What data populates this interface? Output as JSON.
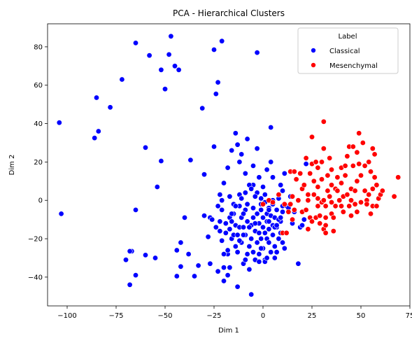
{
  "chart_data": {
    "type": "scatter",
    "title": "PCA - Hierarchical Clusters",
    "xlabel": "Dim 1",
    "ylabel": "Dim 2",
    "xlim": [
      -110,
      75
    ],
    "ylim": [
      -55,
      92
    ],
    "xticks": [
      -100,
      -75,
      -50,
      -25,
      0,
      25,
      50,
      75
    ],
    "yticks": [
      -40,
      -20,
      0,
      20,
      40,
      60,
      80
    ],
    "grid": false,
    "legend": {
      "title": "Label",
      "placement": "top-right"
    },
    "series": [
      {
        "name": "Classical",
        "color": "#0000ff",
        "points": [
          [
            -104,
            40.5
          ],
          [
            -103,
            -7
          ],
          [
            -85,
            53.5
          ],
          [
            -84,
            36
          ],
          [
            -86,
            32.5
          ],
          [
            -78,
            48.5
          ],
          [
            -72,
            63
          ],
          [
            -70,
            -31
          ],
          [
            -67,
            -26.5
          ],
          [
            -68,
            -26.5
          ],
          [
            -68,
            -44
          ],
          [
            -65,
            82
          ],
          [
            -65,
            -5
          ],
          [
            -65,
            -39
          ],
          [
            -60,
            -28.5
          ],
          [
            -60,
            27.5
          ],
          [
            -58,
            75.5
          ],
          [
            -55,
            -30
          ],
          [
            -54,
            7
          ],
          [
            -52,
            20.5
          ],
          [
            -52,
            68
          ],
          [
            -50,
            58
          ],
          [
            -48,
            76
          ],
          [
            -47,
            85.5
          ],
          [
            -45,
            70
          ],
          [
            -44,
            -39.5
          ],
          [
            -44,
            -26
          ],
          [
            -43,
            68
          ],
          [
            -42,
            -34.5
          ],
          [
            -42,
            -22
          ],
          [
            -40,
            -9
          ],
          [
            -38,
            -28
          ],
          [
            -37,
            21
          ],
          [
            -35,
            -39.5
          ],
          [
            -33,
            -34
          ],
          [
            -31,
            48
          ],
          [
            -30,
            13.5
          ],
          [
            -30,
            -8
          ],
          [
            -28,
            -19
          ],
          [
            -27,
            -33
          ],
          [
            -27,
            -9
          ],
          [
            -25,
            78.5
          ],
          [
            -25,
            28
          ],
          [
            -24,
            55.5
          ],
          [
            -23,
            61.5
          ],
          [
            -23,
            -37
          ],
          [
            -22,
            -11
          ],
          [
            -21,
            -21
          ],
          [
            -20,
            -35
          ],
          [
            -20,
            -42
          ],
          [
            -19,
            -17
          ],
          [
            -18,
            -39
          ],
          [
            -18,
            -28
          ],
          [
            -18,
            -26
          ],
          [
            -17,
            -9
          ],
          [
            -17,
            -15
          ],
          [
            -16,
            -20
          ],
          [
            -16,
            -11
          ],
          [
            -15,
            -18
          ],
          [
            -15,
            -7
          ],
          [
            -14,
            -13
          ],
          [
            -14,
            -24
          ],
          [
            -13,
            -45
          ],
          [
            -13,
            -27
          ],
          [
            -13,
            -18
          ],
          [
            -12,
            3
          ],
          [
            -12,
            -3
          ],
          [
            -12,
            -14
          ],
          [
            -11,
            1
          ],
          [
            -11,
            -9
          ],
          [
            -11,
            -22
          ],
          [
            -10,
            -33
          ],
          [
            -10,
            -14
          ],
          [
            -9,
            -5
          ],
          [
            -9,
            4
          ],
          [
            -9,
            -18
          ],
          [
            -8,
            -11
          ],
          [
            -8,
            -28
          ],
          [
            -7,
            -24
          ],
          [
            -7,
            -36
          ],
          [
            -6,
            -49
          ],
          [
            -6,
            -20
          ],
          [
            -6,
            -13
          ],
          [
            -5,
            -4
          ],
          [
            -5,
            -9
          ],
          [
            -5,
            8
          ],
          [
            -4,
            -16
          ],
          [
            -4,
            -31
          ],
          [
            -3,
            4
          ],
          [
            -3,
            -22
          ],
          [
            -3,
            -7
          ],
          [
            -2,
            -12
          ],
          [
            -2,
            -17
          ],
          [
            -2,
            -28
          ],
          [
            -1,
            1
          ],
          [
            -1,
            -5
          ],
          [
            -1,
            -20
          ],
          [
            0,
            -9
          ],
          [
            0,
            -14
          ],
          [
            0,
            -25
          ],
          [
            1,
            -1
          ],
          [
            1,
            3
          ],
          [
            1,
            -17
          ],
          [
            1,
            -31
          ],
          [
            2,
            -7
          ],
          [
            2,
            -20
          ],
          [
            2,
            -11
          ],
          [
            3,
            -4
          ],
          [
            3,
            -15
          ],
          [
            3,
            -22
          ],
          [
            4,
            -8
          ],
          [
            4,
            -27
          ],
          [
            5,
            -13
          ],
          [
            5,
            -18
          ],
          [
            5,
            -2
          ],
          [
            6,
            -9
          ],
          [
            6,
            -24
          ],
          [
            6,
            -30
          ],
          [
            7,
            -5
          ],
          [
            7,
            -14
          ],
          [
            8,
            -20
          ],
          [
            8,
            1
          ],
          [
            9,
            -11
          ],
          [
            9,
            -17
          ],
          [
            10,
            -3
          ],
          [
            10,
            -6
          ],
          [
            10,
            -22
          ],
          [
            11,
            -25
          ],
          [
            -21,
            -5
          ],
          [
            -22,
            3
          ],
          [
            -20,
            9
          ],
          [
            -18,
            17
          ],
          [
            -17,
            2
          ],
          [
            -16,
            26
          ],
          [
            -15,
            -2
          ],
          [
            -14,
            35
          ],
          [
            -13,
            29
          ],
          [
            -12,
            20
          ],
          [
            -11,
            24
          ],
          [
            -10,
            -7
          ],
          [
            -9,
            14
          ],
          [
            -8,
            -2
          ],
          [
            -8,
            32
          ],
          [
            -7,
            8
          ],
          [
            -6,
            6
          ],
          [
            -5,
            18
          ],
          [
            -4,
            2
          ],
          [
            -3,
            27
          ],
          [
            -3,
            77
          ],
          [
            -2,
            12
          ],
          [
            -1,
            -2
          ],
          [
            0,
            7
          ],
          [
            1,
            -32
          ],
          [
            2,
            16
          ],
          [
            3,
            -5
          ],
          [
            4,
            20
          ],
          [
            4,
            38
          ],
          [
            5,
            12
          ],
          [
            5,
            0
          ],
          [
            6,
            -14
          ],
          [
            7,
            -13
          ],
          [
            8,
            -10
          ],
          [
            9,
            8
          ],
          [
            10,
            5
          ],
          [
            11,
            14
          ],
          [
            12,
            -3
          ],
          [
            13,
            -4
          ],
          [
            14,
            2
          ],
          [
            15,
            -12
          ],
          [
            16,
            -6
          ],
          [
            18,
            -33
          ],
          [
            19,
            -14
          ],
          [
            20,
            -13
          ],
          [
            21,
            -10
          ],
          [
            22,
            19
          ],
          [
            -26,
            -10
          ],
          [
            -24,
            -14
          ],
          [
            -23,
            -3
          ],
          [
            -22,
            -16
          ],
          [
            -21,
            0
          ],
          [
            -20,
            -28
          ],
          [
            -19,
            -12
          ],
          [
            -17,
            -35
          ],
          [
            -16,
            -7
          ],
          [
            -14,
            -3
          ],
          [
            -12,
            -21
          ],
          [
            -10,
            -18
          ],
          [
            -9,
            -31
          ],
          [
            -7,
            -14
          ],
          [
            -5,
            -27
          ],
          [
            -4,
            -12
          ],
          [
            -2,
            -32
          ],
          [
            -1,
            -25
          ],
          [
            2,
            -30
          ],
          [
            3,
            -11
          ],
          [
            7,
            -27
          ],
          [
            9,
            -9
          ],
          [
            -21,
            83
          ]
        ]
      },
      {
        "name": "Mesenchymal",
        "color": "#ff0000",
        "points": [
          [
            0,
            -2
          ],
          [
            3,
            0
          ],
          [
            5,
            -1
          ],
          [
            8,
            3
          ],
          [
            10,
            -17
          ],
          [
            11,
            -2
          ],
          [
            12,
            -17
          ],
          [
            13,
            -6
          ],
          [
            14,
            -2
          ],
          [
            14,
            15
          ],
          [
            15,
            2
          ],
          [
            15,
            -10
          ],
          [
            16,
            15
          ],
          [
            16,
            -5
          ],
          [
            17,
            11
          ],
          [
            18,
            0
          ],
          [
            19,
            14
          ],
          [
            20,
            -6
          ],
          [
            20,
            6
          ],
          [
            21,
            8
          ],
          [
            22,
            -5
          ],
          [
            22,
            22
          ],
          [
            23,
            -15
          ],
          [
            23,
            0
          ],
          [
            23,
            3
          ],
          [
            24,
            14
          ],
          [
            24,
            -9
          ],
          [
            25,
            -11
          ],
          [
            25,
            19
          ],
          [
            25,
            33
          ],
          [
            26,
            3
          ],
          [
            26,
            10
          ],
          [
            27,
            20
          ],
          [
            27,
            -9
          ],
          [
            28,
            -3
          ],
          [
            28,
            1
          ],
          [
            28,
            7
          ],
          [
            28,
            17
          ],
          [
            29,
            -12
          ],
          [
            29,
            -8
          ],
          [
            30,
            -1
          ],
          [
            30,
            11
          ],
          [
            30,
            20
          ],
          [
            31,
            -15
          ],
          [
            31,
            41
          ],
          [
            31,
            0
          ],
          [
            31,
            27
          ],
          [
            32,
            -3
          ],
          [
            32,
            -9
          ],
          [
            32,
            -17
          ],
          [
            32,
            -13
          ],
          [
            33,
            5
          ],
          [
            33,
            13
          ],
          [
            34,
            22
          ],
          [
            34,
            2
          ],
          [
            35,
            -7
          ],
          [
            35,
            -1
          ],
          [
            35,
            8
          ],
          [
            35,
            16
          ],
          [
            36,
            -9
          ],
          [
            36,
            -16
          ],
          [
            37,
            6
          ],
          [
            37,
            -3
          ],
          [
            38,
            5
          ],
          [
            38,
            12
          ],
          [
            39,
            0
          ],
          [
            40,
            -3
          ],
          [
            40,
            9
          ],
          [
            40,
            17
          ],
          [
            41,
            -6
          ],
          [
            41,
            2
          ],
          [
            42,
            13
          ],
          [
            42,
            18
          ],
          [
            43,
            3
          ],
          [
            43,
            23
          ],
          [
            44,
            -3
          ],
          [
            44,
            28
          ],
          [
            45,
            -8
          ],
          [
            45,
            0
          ],
          [
            45,
            6
          ],
          [
            46,
            28
          ],
          [
            46,
            18
          ],
          [
            47,
            -2
          ],
          [
            47,
            5
          ],
          [
            48,
            -6
          ],
          [
            48,
            10
          ],
          [
            48,
            25
          ],
          [
            49,
            19
          ],
          [
            49,
            35
          ],
          [
            50,
            13
          ],
          [
            50,
            -1
          ],
          [
            51,
            30
          ],
          [
            52,
            5
          ],
          [
            52,
            18
          ],
          [
            53,
            0
          ],
          [
            53,
            -2
          ],
          [
            54,
            20
          ],
          [
            54,
            3
          ],
          [
            55,
            -7
          ],
          [
            55,
            15
          ],
          [
            56,
            -3
          ],
          [
            56,
            6
          ],
          [
            56,
            27
          ],
          [
            57,
            12
          ],
          [
            57,
            24
          ],
          [
            58,
            8
          ],
          [
            58,
            -3
          ],
          [
            59,
            1
          ],
          [
            60,
            3
          ],
          [
            61,
            5
          ],
          [
            67,
            2
          ],
          [
            69,
            12
          ]
        ]
      }
    ]
  }
}
